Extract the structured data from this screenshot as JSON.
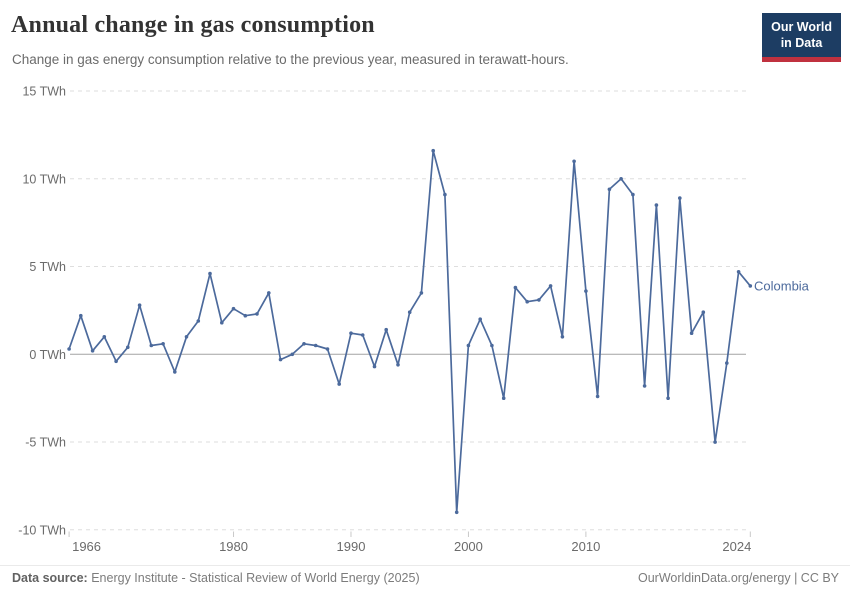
{
  "header": {
    "title": "Annual change in gas consumption",
    "subtitle": "Change in gas energy consumption relative to the previous year, measured in terawatt-hours."
  },
  "logo": {
    "line1": "Our World",
    "line2": "in Data",
    "bg_color": "#1d3d63",
    "accent_color": "#c0313f"
  },
  "chart_data": {
    "type": "line",
    "title": "Annual change in gas consumption",
    "ylabel": "TWh",
    "xlabel": "",
    "xlim": [
      1966,
      2024
    ],
    "ylim": [
      -10,
      15
    ],
    "grid": "horizontal-dashed",
    "zero_line": true,
    "legend_position": "end-of-line-label",
    "x_ticks": [
      {
        "year": 1966,
        "label": "1966"
      },
      {
        "year": 1980,
        "label": "1980"
      },
      {
        "year": 1990,
        "label": "1990"
      },
      {
        "year": 2000,
        "label": "2000"
      },
      {
        "year": 2010,
        "label": "2010"
      },
      {
        "year": 2024,
        "label": "2024"
      }
    ],
    "y_ticks": [
      {
        "value": 15,
        "label": "15 TWh"
      },
      {
        "value": 10,
        "label": "10 TWh"
      },
      {
        "value": 5,
        "label": "5 TWh"
      },
      {
        "value": 0,
        "label": "0 TWh"
      },
      {
        "value": -5,
        "label": "-5 TWh"
      },
      {
        "value": -10,
        "label": "-10 TWh"
      }
    ],
    "series": [
      {
        "name": "Colombia",
        "color": "#4c6a9c",
        "x": [
          1966,
          1967,
          1968,
          1969,
          1970,
          1971,
          1972,
          1973,
          1974,
          1975,
          1976,
          1977,
          1978,
          1979,
          1980,
          1981,
          1982,
          1983,
          1984,
          1985,
          1986,
          1987,
          1988,
          1989,
          1990,
          1991,
          1992,
          1993,
          1994,
          1995,
          1996,
          1997,
          1998,
          1999,
          2000,
          2001,
          2002,
          2003,
          2004,
          2005,
          2006,
          2007,
          2008,
          2009,
          2010,
          2011,
          2012,
          2013,
          2014,
          2015,
          2016,
          2017,
          2018,
          2019,
          2020,
          2021,
          2022,
          2023,
          2024
        ],
        "values": [
          0.3,
          2.2,
          0.2,
          1.0,
          -0.4,
          0.4,
          2.8,
          0.5,
          0.6,
          -1.0,
          1.0,
          1.9,
          4.6,
          1.8,
          2.6,
          2.2,
          2.3,
          3.5,
          -0.3,
          0.0,
          0.6,
          0.5,
          0.3,
          -1.7,
          1.2,
          1.1,
          -0.7,
          1.4,
          -0.6,
          2.4,
          3.5,
          11.6,
          9.1,
          -9.0,
          0.5,
          2.0,
          0.5,
          -2.5,
          3.8,
          3.0,
          3.1,
          3.9,
          1.0,
          11.0,
          3.6,
          -2.4,
          9.4,
          10.0,
          9.1,
          -1.8,
          8.5,
          -2.5,
          8.9,
          1.2,
          2.4,
          -5.0,
          -0.5,
          4.7,
          3.9
        ]
      }
    ]
  },
  "footer": {
    "source_label": "Data source:",
    "source_text": "Energy Institute - Statistical Review of World Energy (2025)",
    "credit": "OurWorldinData.org/energy | CC BY"
  }
}
